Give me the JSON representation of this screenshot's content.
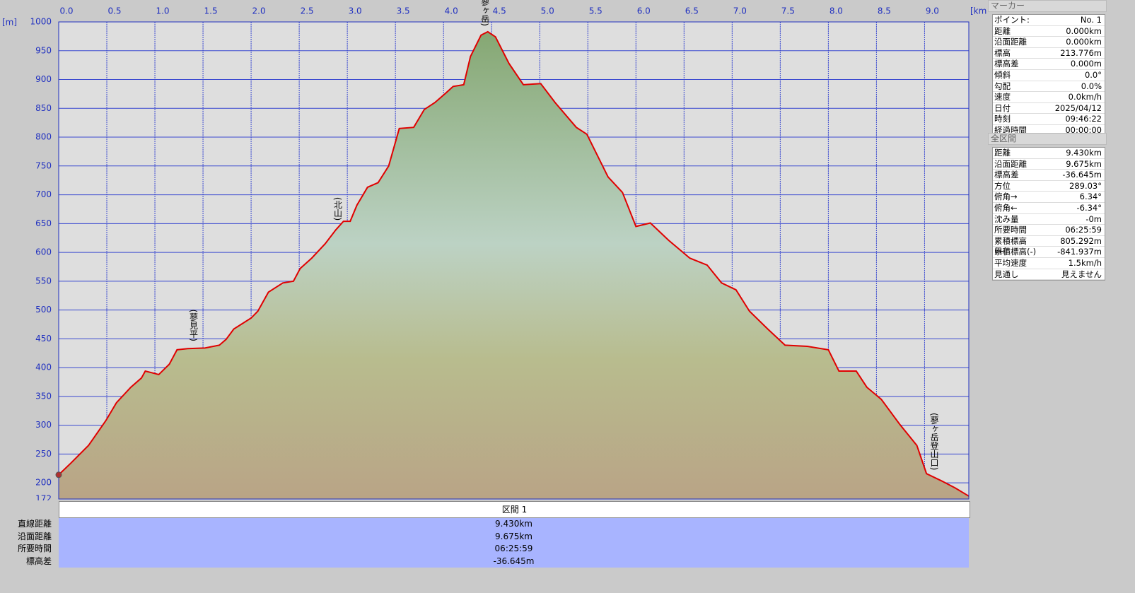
{
  "chart_data": {
    "type": "line",
    "x_unit": "[km]",
    "y_unit": "[m]",
    "xlim": [
      0,
      9.46
    ],
    "ylim": [
      172,
      1000
    ],
    "xticks": [
      {
        "value": 0,
        "label": "0.0"
      },
      0.5,
      {
        "value": 1,
        "label": "1.0"
      },
      1.5,
      {
        "value": 2,
        "label": "2.0"
      },
      2.5,
      {
        "value": 3,
        "label": "3.0"
      },
      3.5,
      {
        "value": 4,
        "label": "4.0"
      },
      4.5,
      {
        "value": 5,
        "label": "5.0"
      },
      5.5,
      {
        "value": 6,
        "label": "6.0"
      },
      6.5,
      {
        "value": 7,
        "label": "7.0"
      },
      7.5,
      {
        "value": 8,
        "label": "8.0"
      },
      8.5,
      {
        "value": 9,
        "label": "9.0"
      }
    ],
    "yticks": [
      172,
      200,
      250,
      300,
      350,
      400,
      450,
      500,
      550,
      600,
      650,
      700,
      750,
      800,
      850,
      900,
      950,
      1000
    ],
    "grid": true,
    "x": [
      0,
      0.125,
      0.31,
      0.49,
      0.6,
      0.75,
      0.86,
      0.9,
      0.97,
      1.04,
      1.15,
      1.23,
      1.34,
      1.52,
      1.67,
      1.74,
      1.82,
      2.0,
      2.07,
      2.18,
      2.33,
      2.44,
      2.51,
      2.63,
      2.77,
      2.88,
      2.96,
      3.03,
      3.1,
      3.21,
      3.32,
      3.43,
      3.54,
      3.69,
      3.8,
      3.91,
      4.02,
      4.1,
      4.21,
      4.28,
      4.39,
      4.46,
      4.54,
      4.68,
      4.83,
      5.01,
      5.16,
      5.38,
      5.49,
      5.71,
      5.86,
      6.0,
      6.15,
      6.34,
      6.56,
      6.74,
      6.89,
      7.04,
      7.18,
      7.37,
      7.55,
      7.78,
      8.0,
      8.11,
      8.29,
      8.4,
      8.55,
      8.74,
      8.92,
      9.02,
      9.17,
      9.32,
      9.46
    ],
    "series": [
      {
        "color": "#e00000",
        "values": [
          214,
          234,
          265,
          308,
          339,
          366,
          382,
          394,
          391,
          388,
          406,
          431,
          433,
          434,
          439,
          449,
          467,
          486,
          498,
          531,
          547,
          550,
          572,
          590,
          615,
          639,
          654,
          654,
          682,
          713,
          721,
          750,
          815,
          817,
          848,
          860,
          876,
          888,
          891,
          940,
          977,
          983,
          974,
          928,
          891,
          893,
          860,
          817,
          805,
          731,
          704,
          645,
          651,
          621,
          590,
          578,
          547,
          535,
          498,
          467,
          439,
          437,
          431,
          394,
          394,
          366,
          345,
          302,
          265,
          216,
          204,
          191,
          177
        ]
      }
    ],
    "annotations": [
      {
        "text": "(蓼見平)",
        "x": 1.4
      },
      {
        "text": "(北山)",
        "x": 2.9
      },
      {
        "text": "(蓼ヶ岳)",
        "x": 4.43
      },
      {
        "text": "(蓼ヶ岳登山口)",
        "x": 9.1
      }
    ]
  },
  "marker_panel": {
    "title": "マーカー",
    "rows": [
      [
        "ポイント:",
        "No. 1"
      ],
      [
        "距離",
        "0.000km"
      ],
      [
        "沿面距離",
        "0.000km"
      ],
      [
        "標高",
        "213.776m"
      ],
      [
        "標高差",
        "0.000m"
      ],
      [
        "傾斜",
        "0.0°"
      ],
      [
        "勾配",
        "0.0%"
      ],
      [
        "速度",
        "0.0km/h"
      ],
      [
        "日付",
        "2025/04/12"
      ],
      [
        "時刻",
        "09:46:22"
      ],
      [
        "経過時間",
        "00:00:00"
      ]
    ]
  },
  "section_panel": {
    "title": "全区間",
    "rows": [
      [
        "距離",
        "9.430km"
      ],
      [
        "沿面距離",
        "9.675km"
      ],
      [
        "標高差",
        "-36.645m"
      ],
      [
        "方位",
        "289.03°"
      ],
      [
        "俯角→",
        "6.34°"
      ],
      [
        "俯角←",
        "-6.34°"
      ],
      [
        "沈み量",
        "-0m"
      ],
      [
        "所要時間",
        "06:25:59"
      ],
      [
        "累積標高(+)",
        "805.292m"
      ],
      [
        "累積標高(-)",
        "-841.937m"
      ],
      [
        "平均速度",
        "1.5km/h"
      ],
      [
        "見通し",
        "見えません"
      ]
    ]
  },
  "section_table": {
    "header": "区間 1",
    "rows": [
      [
        "直線距離",
        "9.430km"
      ],
      [
        "沿面距離",
        "9.675km"
      ],
      [
        "所要時間",
        "06:25:59"
      ],
      [
        "標高差",
        "-36.645m"
      ]
    ]
  }
}
